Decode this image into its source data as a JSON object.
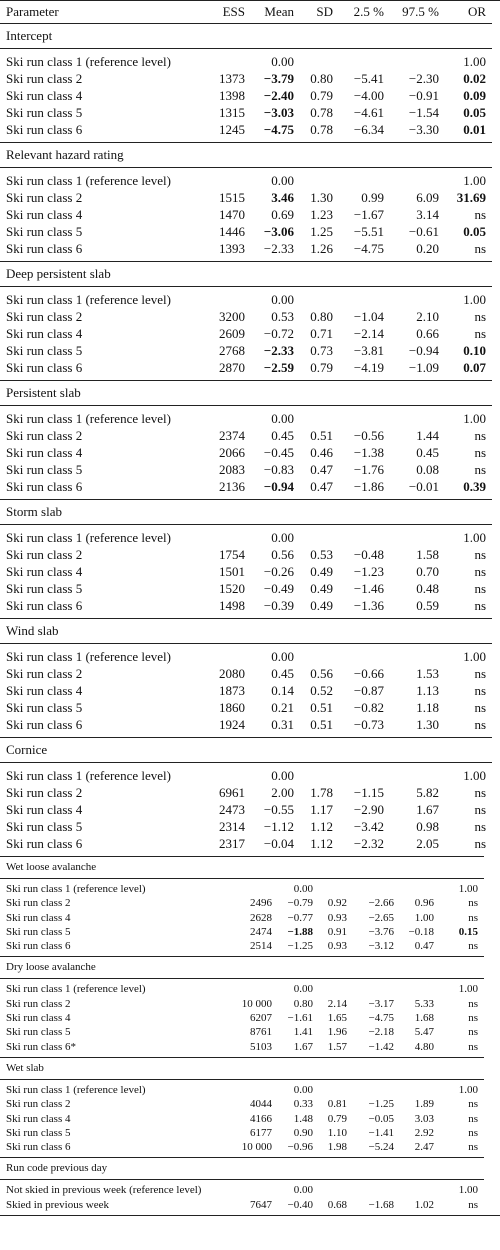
{
  "header": {
    "parameter": "Parameter",
    "ess": "ESS",
    "mean": "Mean",
    "sd": "SD",
    "q025": "2.5 %",
    "q975": "97.5 %",
    "or": "OR"
  },
  "sections_large": [
    {
      "title": "Intercept",
      "rows": [
        {
          "name": "Ski run class 1 (reference level)",
          "ess": "",
          "mean": "0.00",
          "sd": "",
          "lo": "",
          "hi": "",
          "or": "1.00"
        },
        {
          "name": "Ski run class 2",
          "ess": "1373",
          "mean": "−3.79",
          "sd": "0.80",
          "lo": "−5.41",
          "hi": "−2.30",
          "or": "0.02",
          "bold_mean": true,
          "bold_or": true
        },
        {
          "name": "Ski run class 4",
          "ess": "1398",
          "mean": "−2.40",
          "sd": "0.79",
          "lo": "−4.00",
          "hi": "−0.91",
          "or": "0.09",
          "bold_mean": true,
          "bold_or": true
        },
        {
          "name": "Ski run class 5",
          "ess": "1315",
          "mean": "−3.03",
          "sd": "0.78",
          "lo": "−4.61",
          "hi": "−1.54",
          "or": "0.05",
          "bold_mean": true,
          "bold_or": true
        },
        {
          "name": "Ski run class 6",
          "ess": "1245",
          "mean": "−4.75",
          "sd": "0.78",
          "lo": "−6.34",
          "hi": "−3.30",
          "or": "0.01",
          "bold_mean": true,
          "bold_or": true
        }
      ]
    },
    {
      "title": "Relevant hazard rating",
      "rows": [
        {
          "name": "Ski run class 1 (reference level)",
          "ess": "",
          "mean": "0.00",
          "sd": "",
          "lo": "",
          "hi": "",
          "or": "1.00"
        },
        {
          "name": "Ski run class 2",
          "ess": "1515",
          "mean": "3.46",
          "sd": "1.30",
          "lo": "0.99",
          "hi": "6.09",
          "or": "31.69",
          "bold_mean": true,
          "bold_or": true
        },
        {
          "name": "Ski run class 4",
          "ess": "1470",
          "mean": "0.69",
          "sd": "1.23",
          "lo": "−1.67",
          "hi": "3.14",
          "or": "ns"
        },
        {
          "name": "Ski run class 5",
          "ess": "1446",
          "mean": "−3.06",
          "sd": "1.25",
          "lo": "−5.51",
          "hi": "−0.61",
          "or": "0.05",
          "bold_mean": true,
          "bold_or": true
        },
        {
          "name": "Ski run class 6",
          "ess": "1393",
          "mean": "−2.33",
          "sd": "1.26",
          "lo": "−4.75",
          "hi": "0.20",
          "or": "ns"
        }
      ]
    },
    {
      "title": "Deep persistent slab",
      "rows": [
        {
          "name": "Ski run class 1 (reference level)",
          "ess": "",
          "mean": "0.00",
          "sd": "",
          "lo": "",
          "hi": "",
          "or": "1.00"
        },
        {
          "name": "Ski run class 2",
          "ess": "3200",
          "mean": "0.53",
          "sd": "0.80",
          "lo": "−1.04",
          "hi": "2.10",
          "or": "ns"
        },
        {
          "name": "Ski run class 4",
          "ess": "2609",
          "mean": "−0.72",
          "sd": "0.71",
          "lo": "−2.14",
          "hi": "0.66",
          "or": "ns"
        },
        {
          "name": "Ski run class 5",
          "ess": "2768",
          "mean": "−2.33",
          "sd": "0.73",
          "lo": "−3.81",
          "hi": "−0.94",
          "or": "0.10",
          "bold_mean": true,
          "bold_or": true
        },
        {
          "name": "Ski run class 6",
          "ess": "2870",
          "mean": "−2.59",
          "sd": "0.79",
          "lo": "−4.19",
          "hi": "−1.09",
          "or": "0.07",
          "bold_mean": true,
          "bold_or": true
        }
      ]
    },
    {
      "title": "Persistent slab",
      "rows": [
        {
          "name": "Ski run class 1 (reference level)",
          "ess": "",
          "mean": "0.00",
          "sd": "",
          "lo": "",
          "hi": "",
          "or": "1.00"
        },
        {
          "name": "Ski run class 2",
          "ess": "2374",
          "mean": "0.45",
          "sd": "0.51",
          "lo": "−0.56",
          "hi": "1.44",
          "or": "ns"
        },
        {
          "name": "Ski run class 4",
          "ess": "2066",
          "mean": "−0.45",
          "sd": "0.46",
          "lo": "−1.38",
          "hi": "0.45",
          "or": "ns"
        },
        {
          "name": "Ski run class 5",
          "ess": "2083",
          "mean": "−0.83",
          "sd": "0.47",
          "lo": "−1.76",
          "hi": "0.08",
          "or": "ns"
        },
        {
          "name": "Ski run class 6",
          "ess": "2136",
          "mean": "−0.94",
          "sd": "0.47",
          "lo": "−1.86",
          "hi": "−0.01",
          "or": "0.39",
          "bold_mean": true,
          "bold_or": true
        }
      ]
    },
    {
      "title": "Storm slab",
      "rows": [
        {
          "name": "Ski run class 1 (reference level)",
          "ess": "",
          "mean": "0.00",
          "sd": "",
          "lo": "",
          "hi": "",
          "or": "1.00"
        },
        {
          "name": "Ski run class 2",
          "ess": "1754",
          "mean": "0.56",
          "sd": "0.53",
          "lo": "−0.48",
          "hi": "1.58",
          "or": "ns"
        },
        {
          "name": "Ski run class 4",
          "ess": "1501",
          "mean": "−0.26",
          "sd": "0.49",
          "lo": "−1.23",
          "hi": "0.70",
          "or": "ns"
        },
        {
          "name": "Ski run class 5",
          "ess": "1520",
          "mean": "−0.49",
          "sd": "0.49",
          "lo": "−1.46",
          "hi": "0.48",
          "or": "ns"
        },
        {
          "name": "Ski run class 6",
          "ess": "1498",
          "mean": "−0.39",
          "sd": "0.49",
          "lo": "−1.36",
          "hi": "0.59",
          "or": "ns"
        }
      ]
    },
    {
      "title": "Wind slab",
      "rows": [
        {
          "name": "Ski run class 1 (reference level)",
          "ess": "",
          "mean": "0.00",
          "sd": "",
          "lo": "",
          "hi": "",
          "or": "1.00"
        },
        {
          "name": "Ski run class 2",
          "ess": "2080",
          "mean": "0.45",
          "sd": "0.56",
          "lo": "−0.66",
          "hi": "1.53",
          "or": "ns"
        },
        {
          "name": "Ski run class 4",
          "ess": "1873",
          "mean": "0.14",
          "sd": "0.52",
          "lo": "−0.87",
          "hi": "1.13",
          "or": "ns"
        },
        {
          "name": "Ski run class 5",
          "ess": "1860",
          "mean": "0.21",
          "sd": "0.51",
          "lo": "−0.82",
          "hi": "1.18",
          "or": "ns"
        },
        {
          "name": "Ski run class 6",
          "ess": "1924",
          "mean": "0.31",
          "sd": "0.51",
          "lo": "−0.73",
          "hi": "1.30",
          "or": "ns"
        }
      ]
    },
    {
      "title": "Cornice",
      "rows": [
        {
          "name": "Ski run class 1 (reference level)",
          "ess": "",
          "mean": "0.00",
          "sd": "",
          "lo": "",
          "hi": "",
          "or": "1.00"
        },
        {
          "name": "Ski run class 2",
          "ess": "6961",
          "mean": "2.00",
          "sd": "1.78",
          "lo": "−1.15",
          "hi": "5.82",
          "or": "ns"
        },
        {
          "name": "Ski run class 4",
          "ess": "2473",
          "mean": "−0.55",
          "sd": "1.17",
          "lo": "−2.90",
          "hi": "1.67",
          "or": "ns"
        },
        {
          "name": "Ski run class 5",
          "ess": "2314",
          "mean": "−1.12",
          "sd": "1.12",
          "lo": "−3.42",
          "hi": "0.98",
          "or": "ns"
        },
        {
          "name": "Ski run class 6",
          "ess": "2317",
          "mean": "−0.04",
          "sd": "1.12",
          "lo": "−2.32",
          "hi": "2.05",
          "or": "ns"
        }
      ]
    }
  ],
  "sections_small": [
    {
      "title": "Wet loose avalanche",
      "rows": [
        {
          "name": "Ski run class 1 (reference level)",
          "ess": "",
          "mean": "0.00",
          "sd": "",
          "lo": "",
          "hi": "",
          "or": "1.00"
        },
        {
          "name": "Ski run class 2",
          "ess": "2496",
          "mean": "−0.79",
          "sd": "0.92",
          "lo": "−2.66",
          "hi": "0.96",
          "or": "ns"
        },
        {
          "name": "Ski run class 4",
          "ess": "2628",
          "mean": "−0.77",
          "sd": "0.93",
          "lo": "−2.65",
          "hi": "1.00",
          "or": "ns"
        },
        {
          "name": "Ski run class 5",
          "ess": "2474",
          "mean": "−1.88",
          "sd": "0.91",
          "lo": "−3.76",
          "hi": "−0.18",
          "or": "0.15",
          "bold_mean": true,
          "bold_or": true
        },
        {
          "name": "Ski run class 6",
          "ess": "2514",
          "mean": "−1.25",
          "sd": "0.93",
          "lo": "−3.12",
          "hi": "0.47",
          "or": "ns"
        }
      ]
    },
    {
      "title": "Dry loose avalanche",
      "rows": [
        {
          "name": "Ski run class 1 (reference level)",
          "ess": "",
          "mean": "0.00",
          "sd": "",
          "lo": "",
          "hi": "",
          "or": "1.00"
        },
        {
          "name": "Ski run class 2",
          "ess": "10 000",
          "mean": "0.80",
          "sd": "2.14",
          "lo": "−3.17",
          "hi": "5.33",
          "or": "ns"
        },
        {
          "name": "Ski run class 4",
          "ess": "6207",
          "mean": "−1.61",
          "sd": "1.65",
          "lo": "−4.75",
          "hi": "1.68",
          "or": "ns"
        },
        {
          "name": "Ski run class 5",
          "ess": "8761",
          "mean": "1.41",
          "sd": "1.96",
          "lo": "−2.18",
          "hi": "5.47",
          "or": "ns"
        },
        {
          "name": "Ski run class 6*",
          "ess": "5103",
          "mean": "1.67",
          "sd": "1.57",
          "lo": "−1.42",
          "hi": "4.80",
          "or": "ns"
        }
      ]
    },
    {
      "title": "Wet slab",
      "rows": [
        {
          "name": "Ski run class 1 (reference level)",
          "ess": "",
          "mean": "0.00",
          "sd": "",
          "lo": "",
          "hi": "",
          "or": "1.00"
        },
        {
          "name": "Ski run class 2",
          "ess": "4044",
          "mean": "0.33",
          "sd": "0.81",
          "lo": "−1.25",
          "hi": "1.89",
          "or": "ns"
        },
        {
          "name": "Ski run class 4",
          "ess": "4166",
          "mean": "1.48",
          "sd": "0.79",
          "lo": "−0.05",
          "hi": "3.03",
          "or": "ns"
        },
        {
          "name": "Ski run class 5",
          "ess": "6177",
          "mean": "0.90",
          "sd": "1.10",
          "lo": "−1.41",
          "hi": "2.92",
          "or": "ns"
        },
        {
          "name": "Ski run class 6",
          "ess": "10 000",
          "mean": "−0.96",
          "sd": "1.98",
          "lo": "−5.24",
          "hi": "2.47",
          "or": "ns"
        }
      ]
    },
    {
      "title": "Run code previous day",
      "rows": [
        {
          "name": "Not skied in previous week (reference level)",
          "ess": "",
          "mean": "0.00",
          "sd": "",
          "lo": "",
          "hi": "",
          "or": "1.00"
        },
        {
          "name": "Skied in previous week",
          "ess": "7647",
          "mean": "−0.40",
          "sd": "0.68",
          "lo": "−1.68",
          "hi": "1.02",
          "or": "ns"
        }
      ]
    }
  ]
}
